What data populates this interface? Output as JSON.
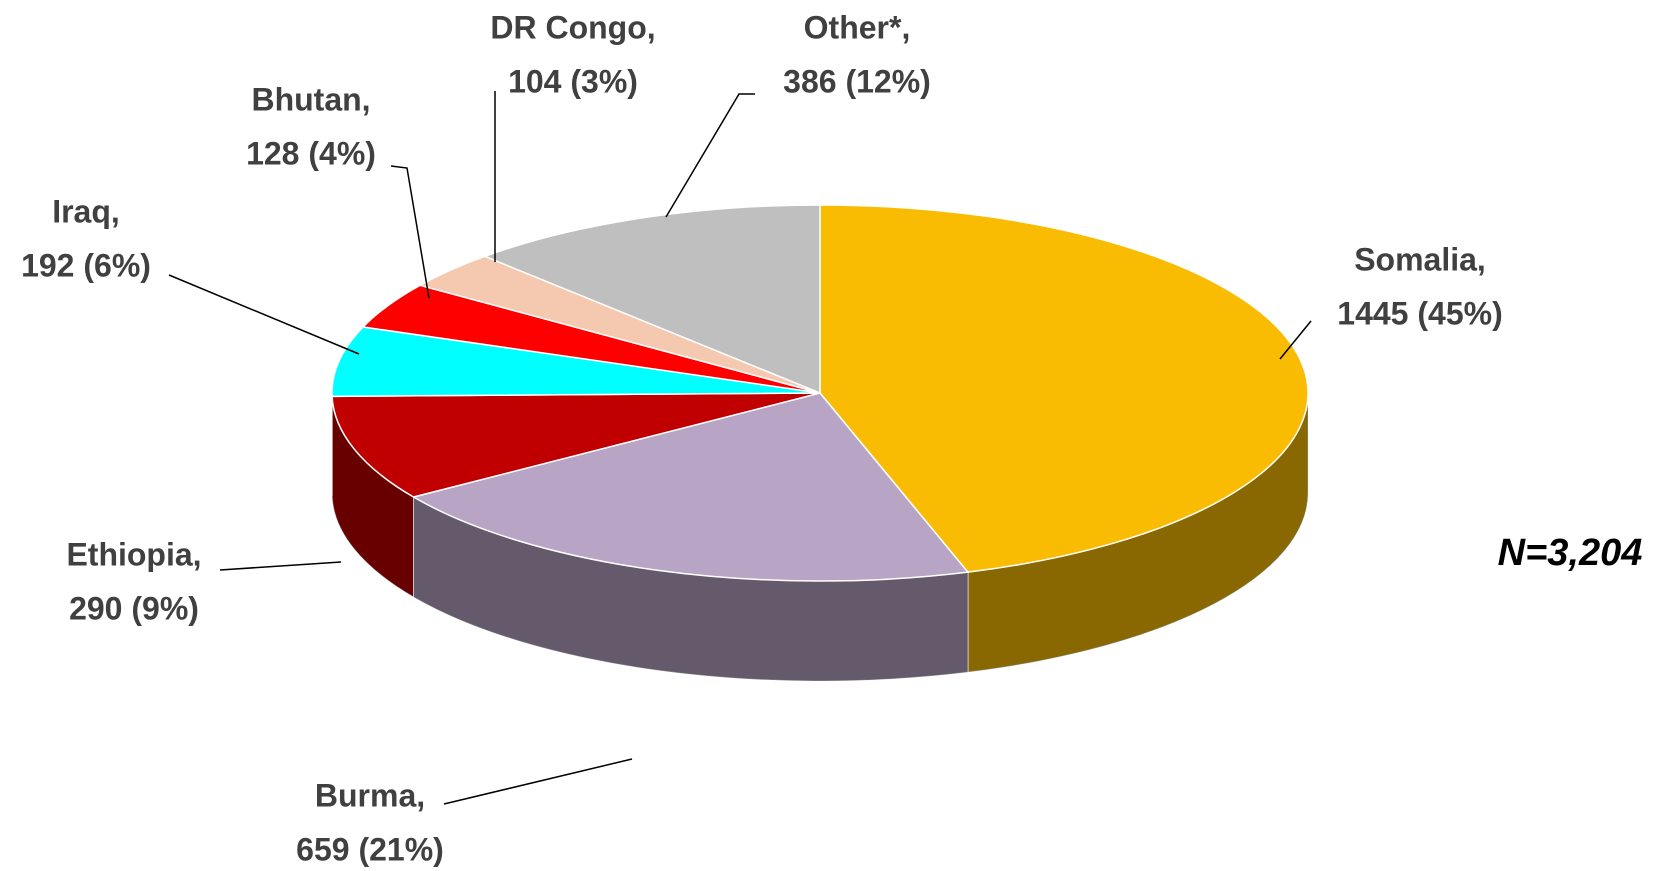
{
  "chart_data": {
    "type": "pie3d",
    "categories": [
      "Somalia,",
      "Burma,",
      "Ethiopia,",
      "Iraq,",
      "Bhutan,",
      "DR Congo,",
      "Other*,"
    ],
    "values": [
      1445,
      659,
      290,
      192,
      128,
      104,
      386
    ],
    "value_labels": [
      "1445 (45%)",
      "659 (21%)",
      "290 (9%)",
      "192 (6%)",
      "128 (4%)",
      "104 (3%)",
      "386 (12%)"
    ],
    "colors": [
      "#f9bc02",
      "#b8a4c4",
      "#c00000",
      "#00ffff",
      "#ff0000",
      "#f5c8b0",
      "#bfbfbf"
    ],
    "annotation": "N=3,204"
  }
}
